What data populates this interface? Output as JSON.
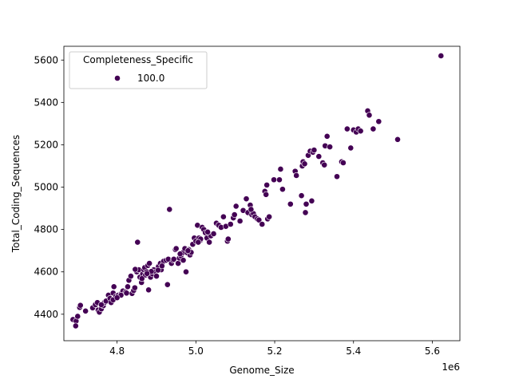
{
  "chart_data": {
    "type": "scatter",
    "xlabel": "Genome_Size",
    "ylabel": "Total_Coding_Sequences",
    "x_offset_label": "1e6",
    "xlim": [
      4.665,
      5.67
    ],
    "ylim": [
      4275,
      5665
    ],
    "x_ticks": [
      4.8,
      5.0,
      5.2,
      5.4,
      5.6
    ],
    "x_tick_labels": [
      "4.8",
      "5.0",
      "5.2",
      "5.4",
      "5.6"
    ],
    "y_ticks": [
      4400,
      4600,
      4800,
      5000,
      5200,
      5400,
      5600
    ],
    "y_tick_labels": [
      "4400",
      "4600",
      "4800",
      "5000",
      "5200",
      "5400",
      "5600"
    ],
    "grid": false,
    "legend": {
      "title": "Completeness_Specific",
      "placement": "top-left",
      "entries": [
        {
          "label": "100.0",
          "color": "#440154"
        }
      ]
    },
    "marker_color": "#440154",
    "points": [
      [
        4.688,
        4375
      ],
      [
        4.696,
        4368
      ],
      [
        4.695,
        4345
      ],
      [
        4.7,
        4390
      ],
      [
        4.705,
        4432
      ],
      [
        4.707,
        4442
      ],
      [
        4.72,
        4415
      ],
      [
        4.738,
        4430
      ],
      [
        4.745,
        4445
      ],
      [
        4.75,
        4455
      ],
      [
        4.752,
        4420
      ],
      [
        4.755,
        4410
      ],
      [
        4.76,
        4425
      ],
      [
        4.765,
        4440
      ],
      [
        4.768,
        4455
      ],
      [
        4.772,
        4462
      ],
      [
        4.778,
        4490
      ],
      [
        4.782,
        4475
      ],
      [
        4.785,
        4455
      ],
      [
        4.79,
        4500
      ],
      [
        4.792,
        4530
      ],
      [
        4.797,
        4485
      ],
      [
        4.803,
        4490
      ],
      [
        4.81,
        4496
      ],
      [
        4.815,
        4510
      ],
      [
        4.822,
        4505
      ],
      [
        4.827,
        4530
      ],
      [
        4.83,
        4560
      ],
      [
        4.835,
        4580
      ],
      [
        4.838,
        4498
      ],
      [
        4.842,
        4512
      ],
      [
        4.845,
        4525
      ],
      [
        4.85,
        4600
      ],
      [
        4.852,
        4740
      ],
      [
        4.855,
        4610
      ],
      [
        4.858,
        4575
      ],
      [
        4.862,
        4550
      ],
      [
        4.865,
        4590
      ],
      [
        4.868,
        4610
      ],
      [
        4.87,
        4620
      ],
      [
        4.872,
        4585
      ],
      [
        4.875,
        4600
      ],
      [
        4.878,
        4630
      ],
      [
        4.88,
        4515
      ],
      [
        4.882,
        4640
      ],
      [
        4.885,
        4575
      ],
      [
        4.89,
        4590
      ],
      [
        4.893,
        4610
      ],
      [
        4.897,
        4600
      ],
      [
        4.9,
        4580
      ],
      [
        4.905,
        4625
      ],
      [
        4.91,
        4640
      ],
      [
        4.912,
        4610
      ],
      [
        4.918,
        4650
      ],
      [
        4.925,
        4655
      ],
      [
        4.928,
        4540
      ],
      [
        4.93,
        4660
      ],
      [
        4.933,
        4895
      ],
      [
        4.938,
        4640
      ],
      [
        4.942,
        4655
      ],
      [
        4.948,
        4705
      ],
      [
        4.95,
        4710
      ],
      [
        4.955,
        4640
      ],
      [
        4.958,
        4665
      ],
      [
        4.962,
        4675
      ],
      [
        4.966,
        4690
      ],
      [
        4.968,
        4655
      ],
      [
        4.972,
        4710
      ],
      [
        4.975,
        4600
      ],
      [
        4.978,
        4690
      ],
      [
        4.982,
        4705
      ],
      [
        4.985,
        4680
      ],
      [
        4.992,
        4730
      ],
      [
        4.996,
        4760
      ],
      [
        5.0,
        4745
      ],
      [
        5.004,
        4820
      ],
      [
        5.008,
        4760
      ],
      [
        5.012,
        4750
      ],
      [
        5.016,
        4810
      ],
      [
        5.02,
        4800
      ],
      [
        5.024,
        4785
      ],
      [
        5.028,
        4760
      ],
      [
        5.034,
        4740
      ],
      [
        5.038,
        4770
      ],
      [
        5.045,
        4780
      ],
      [
        5.052,
        4830
      ],
      [
        5.058,
        4820
      ],
      [
        5.064,
        4810
      ],
      [
        5.07,
        4860
      ],
      [
        5.076,
        4815
      ],
      [
        5.08,
        4745
      ],
      [
        5.082,
        4755
      ],
      [
        5.088,
        4825
      ],
      [
        5.095,
        4855
      ],
      [
        5.098,
        4870
      ],
      [
        5.102,
        4910
      ],
      [
        5.112,
        4840
      ],
      [
        5.12,
        4890
      ],
      [
        5.128,
        4945
      ],
      [
        5.132,
        4880
      ],
      [
        5.138,
        4915
      ],
      [
        5.142,
        4870
      ],
      [
        5.146,
        4875
      ],
      [
        5.15,
        4860
      ],
      [
        5.156,
        4850
      ],
      [
        5.16,
        4845
      ],
      [
        5.168,
        4825
      ],
      [
        5.175,
        4980
      ],
      [
        5.178,
        4965
      ],
      [
        5.18,
        5010
      ],
      [
        5.182,
        4850
      ],
      [
        5.186,
        4860
      ],
      [
        5.198,
        5035
      ],
      [
        5.212,
        5035
      ],
      [
        5.215,
        5085
      ],
      [
        5.22,
        4990
      ],
      [
        5.24,
        4920
      ],
      [
        5.252,
        5075
      ],
      [
        5.255,
        5055
      ],
      [
        5.268,
        4960
      ],
      [
        5.27,
        5100
      ],
      [
        5.272,
        5120
      ],
      [
        5.276,
        5110
      ],
      [
        5.28,
        4920
      ],
      [
        5.285,
        5150
      ],
      [
        5.29,
        5170
      ],
      [
        5.294,
        4935
      ],
      [
        5.297,
        5165
      ],
      [
        5.3,
        5175
      ],
      [
        5.312,
        5145
      ],
      [
        5.322,
        5115
      ],
      [
        5.326,
        5105
      ],
      [
        5.328,
        5195
      ],
      [
        5.333,
        5240
      ],
      [
        5.34,
        5190
      ],
      [
        5.358,
        5050
      ],
      [
        5.37,
        5120
      ],
      [
        5.374,
        5115
      ],
      [
        5.384,
        5275
      ],
      [
        5.393,
        5185
      ],
      [
        5.4,
        5270
      ],
      [
        5.407,
        5260
      ],
      [
        5.412,
        5275
      ],
      [
        5.418,
        5265
      ],
      [
        5.436,
        5360
      ],
      [
        5.44,
        5340
      ],
      [
        5.45,
        5275
      ],
      [
        5.464,
        5310
      ],
      [
        5.512,
        5225
      ],
      [
        5.622,
        5620
      ],
      [
        4.81,
        4490
      ],
      [
        4.824,
        4500
      ],
      [
        4.846,
        4612
      ],
      [
        4.863,
        4568
      ],
      [
        4.887,
        4602
      ],
      [
        4.904,
        4608
      ],
      [
        4.944,
        4660
      ],
      [
        4.96,
        4685
      ],
      [
        4.988,
        4692
      ],
      [
        5.012,
        4755
      ],
      [
        5.03,
        4788
      ],
      [
        5.006,
        4740
      ],
      [
        4.876,
        4592
      ],
      [
        4.914,
        4628
      ],
      [
        4.76,
        4445
      ],
      [
        4.79,
        4468
      ],
      [
        4.8,
        4478
      ],
      [
        5.14,
        4895
      ],
      [
        5.278,
        4880
      ],
      [
        4.98,
        4700
      ]
    ]
  }
}
